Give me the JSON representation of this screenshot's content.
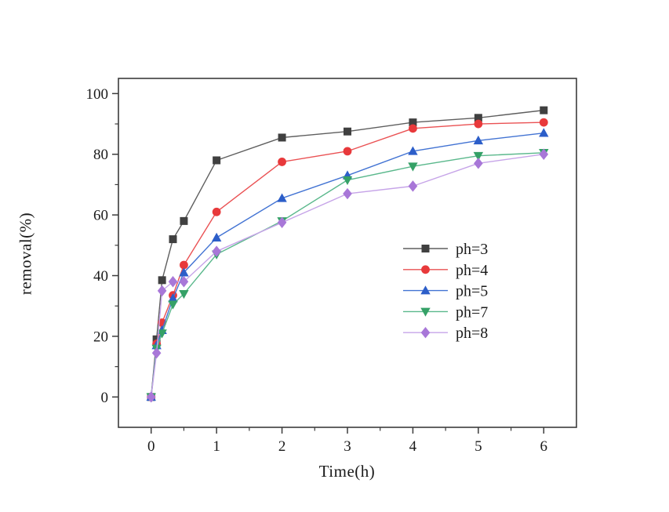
{
  "chart_data": {
    "type": "line",
    "title": "",
    "xlabel": "Time(h)",
    "ylabel": "removal(%)",
    "xlim": [
      -0.5,
      6.5
    ],
    "ylim": [
      -10,
      105
    ],
    "x_ticks": [
      0,
      1,
      2,
      3,
      4,
      5,
      6
    ],
    "x_minor_ticks": [
      0.5,
      1.5,
      2.5,
      3.5,
      4.5,
      5.5
    ],
    "y_ticks": [
      0,
      20,
      40,
      60,
      80,
      100
    ],
    "y_minor_ticks": [
      10,
      30,
      50,
      70,
      90
    ],
    "grid": "off",
    "legend_position": "center-right",
    "x": [
      0,
      0.083,
      0.167,
      0.333,
      0.5,
      1,
      2,
      3,
      4,
      5,
      6
    ],
    "series": [
      {
        "name": "ph=3",
        "marker": "square",
        "marker_color": "#404040",
        "line_color": "#5e5e5e",
        "values": [
          0,
          19,
          38.5,
          52,
          58,
          78,
          85.5,
          87.5,
          90.5,
          92,
          94.5
        ]
      },
      {
        "name": "ph=4",
        "marker": "circle",
        "marker_color": "#e8393b",
        "line_color": "#ea5153",
        "values": [
          0,
          17.5,
          24.5,
          33.5,
          43.5,
          61,
          77.5,
          81,
          88.5,
          90,
          90.5
        ]
      },
      {
        "name": "ph=5",
        "marker": "triangle-up",
        "marker_color": "#2c5ec9",
        "line_color": "#4273d3",
        "values": [
          0,
          17,
          22,
          32.5,
          41,
          52.5,
          65.5,
          73,
          81,
          84.5,
          87
        ]
      },
      {
        "name": "ph=7",
        "marker": "triangle-down",
        "marker_color": "#35a167",
        "line_color": "#5ab88c",
        "values": [
          0,
          16,
          21,
          30.5,
          34,
          47,
          58,
          71.5,
          76,
          79.5,
          80.5
        ]
      },
      {
        "name": "ph=8",
        "marker": "diamond",
        "marker_color": "#a877d8",
        "line_color": "#c6a4e8",
        "values": [
          0,
          14.5,
          35,
          38,
          38,
          48,
          57.5,
          67,
          69.5,
          77,
          80
        ]
      }
    ],
    "frame_color": "#3c3c3c",
    "background": "#ffffff"
  },
  "layout_labels": {
    "x_tick_labels": [
      "0",
      "1",
      "2",
      "3",
      "4",
      "5",
      "6"
    ],
    "y_tick_labels": [
      "0",
      "20",
      "40",
      "60",
      "80",
      "100"
    ],
    "legend_labels": [
      "ph=3",
      "ph=4",
      "ph=5",
      "ph=7",
      "ph=8"
    ]
  }
}
